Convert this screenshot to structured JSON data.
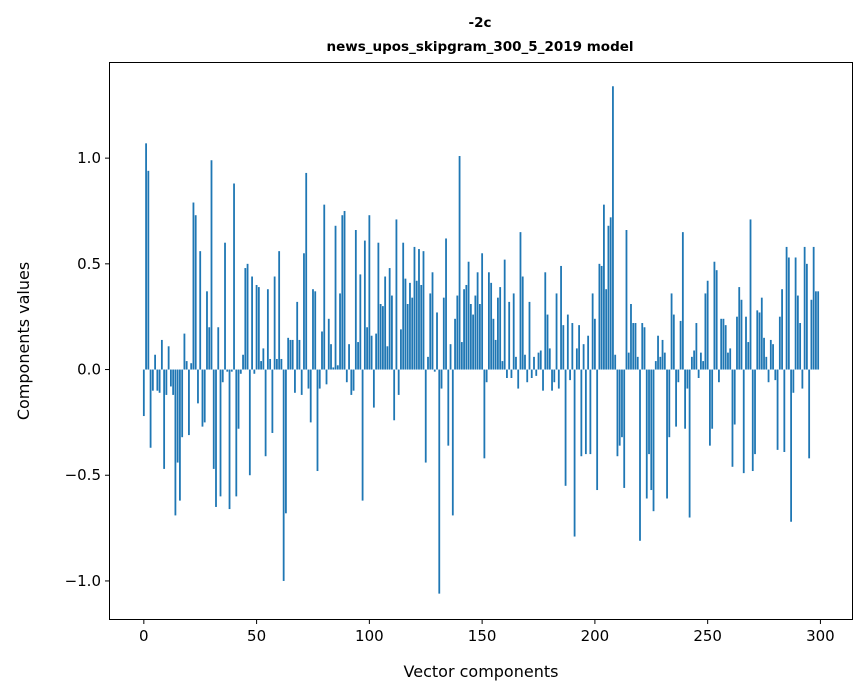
{
  "chart_data": {
    "type": "bar",
    "title_line1": "-2c",
    "title_line2": "news_upos_skipgram_300_5_2019 model",
    "xlabel": "Vector components",
    "ylabel": "Components values",
    "xlim": [
      -15,
      314
    ],
    "ylim": [
      -1.18,
      1.45
    ],
    "xticks": [
      0,
      50,
      100,
      150,
      200,
      250,
      300
    ],
    "xtick_labels": [
      "0",
      "50",
      "100",
      "150",
      "200",
      "250",
      "300"
    ],
    "yticks": [
      -1.0,
      -0.5,
      0.0,
      0.5,
      1.0
    ],
    "ytick_labels": [
      "−1.0",
      "−0.5",
      "0.0",
      "0.5",
      "1.0"
    ],
    "color": "#1f77b4",
    "values": [
      -0.22,
      1.07,
      0.94,
      -0.37,
      -0.1,
      0.07,
      -0.1,
      -0.11,
      0.14,
      -0.47,
      -0.12,
      0.11,
      -0.08,
      -0.12,
      -0.69,
      -0.44,
      -0.62,
      -0.32,
      0.17,
      0.04,
      -0.31,
      0.03,
      0.79,
      0.73,
      -0.16,
      0.56,
      -0.27,
      -0.25,
      0.37,
      0.2,
      0.99,
      -0.47,
      -0.65,
      0.2,
      -0.6,
      -0.06,
      0.6,
      -0.01,
      -0.66,
      -0.01,
      0.88,
      -0.6,
      -0.28,
      -0.02,
      0.07,
      0.48,
      0.5,
      -0.5,
      0.44,
      -0.02,
      0.4,
      0.39,
      0.04,
      0.1,
      -0.41,
      0.38,
      0.05,
      -0.3,
      0.44,
      0.05,
      0.56,
      0.05,
      -1.0,
      -0.68,
      0.15,
      0.14,
      0.14,
      -0.11,
      0.32,
      0.14,
      -0.12,
      0.55,
      0.93,
      -0.09,
      -0.25,
      0.38,
      0.37,
      -0.48,
      -0.09,
      0.18,
      0.78,
      -0.07,
      0.24,
      0.12,
      0.01,
      0.68,
      0.02,
      0.36,
      0.73,
      0.75,
      -0.06,
      0.12,
      -0.12,
      -0.1,
      0.66,
      0.13,
      0.45,
      -0.62,
      0.61,
      0.2,
      0.73,
      0.16,
      -0.18,
      0.17,
      0.6,
      0.31,
      0.3,
      0.44,
      0.11,
      0.48,
      0.35,
      -0.24,
      0.71,
      -0.12,
      0.19,
      0.6,
      0.43,
      0.31,
      0.41,
      0.34,
      0.58,
      0.42,
      0.57,
      0.4,
      0.56,
      -0.44,
      0.06,
      0.36,
      0.46,
      -0.01,
      0.27,
      -1.06,
      -0.09,
      0.34,
      0.62,
      -0.36,
      0.12,
      -0.69,
      0.24,
      0.35,
      1.01,
      0.13,
      0.38,
      0.4,
      0.51,
      0.31,
      0.26,
      0.35,
      0.46,
      0.31,
      0.55,
      -0.42,
      -0.06,
      0.46,
      0.41,
      0.24,
      0.14,
      0.34,
      0.39,
      0.04,
      0.52,
      -0.04,
      0.32,
      -0.04,
      0.36,
      0.06,
      -0.09,
      0.65,
      0.44,
      0.07,
      -0.06,
      0.32,
      -0.04,
      0.06,
      -0.03,
      0.08,
      0.09,
      -0.1,
      0.46,
      0.26,
      0.1,
      -0.1,
      -0.06,
      0.36,
      -0.09,
      0.49,
      0.21,
      -0.55,
      0.26,
      -0.05,
      0.22,
      -0.79,
      0.1,
      0.21,
      -0.41,
      0.12,
      -0.4,
      0.16,
      -0.4,
      0.36,
      0.24,
      -0.57,
      0.5,
      0.49,
      0.78,
      0.38,
      0.68,
      0.72,
      1.34,
      0.07,
      -0.41,
      -0.36,
      -0.32,
      -0.56,
      0.66,
      0.08,
      0.31,
      0.22,
      0.22,
      0.06,
      -0.81,
      0.22,
      0.2,
      -0.61,
      -0.4,
      -0.57,
      -0.67,
      0.04,
      0.16,
      0.06,
      0.14,
      0.08,
      -0.61,
      -0.32,
      0.36,
      0.26,
      -0.27,
      -0.06,
      0.23,
      0.65,
      -0.28,
      -0.09,
      -0.7,
      0.06,
      0.09,
      0.22,
      -0.04,
      0.08,
      0.04,
      0.36,
      0.42,
      -0.36,
      -0.28,
      0.51,
      0.47,
      -0.06,
      0.24,
      0.24,
      0.21,
      0.08,
      0.1,
      -0.46,
      -0.26,
      0.25,
      0.39,
      0.33,
      -0.49,
      0.25,
      0.13,
      0.71,
      -0.48,
      -0.4,
      0.28,
      0.27,
      0.34,
      0.15,
      0.06,
      -0.06,
      0.14,
      0.12,
      -0.05,
      -0.38,
      0.25,
      0.38,
      -0.39,
      0.58,
      0.53,
      -0.72,
      -0.11,
      0.53,
      0.35,
      0.22,
      -0.09,
      0.58,
      0.5,
      -0.42,
      0.33,
      0.58,
      0.37,
      0.37
    ]
  }
}
